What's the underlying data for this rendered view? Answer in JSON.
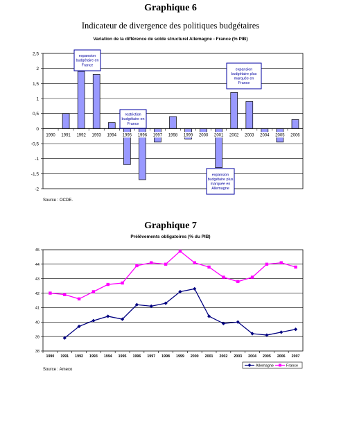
{
  "chart_data": [
    {
      "type": "bar",
      "heading": "Graphique 6",
      "title": "Indicateur de divergence des politiques budgétaires",
      "subtitle": "Variation de la différence de solde structurel Allemagne - France (% PIB)",
      "categories": [
        "1990",
        "1991",
        "1992",
        "1993",
        "1994",
        "1995",
        "1996",
        "1997",
        "1998",
        "1999",
        "2000",
        "2001",
        "2002",
        "2003",
        "2004",
        "2005",
        "2006"
      ],
      "values": [
        0,
        0.5,
        1.9,
        1.8,
        0.2,
        -1.2,
        -1.7,
        -0.45,
        0.4,
        -0.35,
        -0.2,
        -1.3,
        1.2,
        0.9,
        -0.2,
        -0.45,
        0.3
      ],
      "ylim": [
        -2,
        2.5
      ],
      "yticks": [
        "2,5",
        "2",
        "1,5",
        "1",
        "0,5",
        "0",
        "-0,5",
        "-1",
        "-1,5",
        "-2"
      ],
      "ytick_values": [
        2.5,
        2,
        1.5,
        1,
        0.5,
        0,
        -0.5,
        -1,
        -1.5,
        -2
      ],
      "bar_color": "#9999ff",
      "grid": true,
      "annotations": [
        {
          "text": [
            "expansion",
            "budgétaire en",
            "France"
          ],
          "category": "1992"
        },
        {
          "text": [
            "restriction",
            "budgétaire en",
            "France"
          ],
          "category": "1996"
        },
        {
          "text": [
            "expansion",
            "budgétaire plus",
            "marquée en",
            "Allemagne"
          ],
          "category": "2001"
        },
        {
          "text": [
            "expansion",
            "budgétaire plus",
            "marquée en",
            "France"
          ],
          "category": "2002"
        }
      ],
      "source": "Source : OCDE."
    },
    {
      "type": "line",
      "heading": "Graphique 7",
      "title": "Prélèvements obligatoires (% du PIB)",
      "x": [
        "1990",
        "1991",
        "1992",
        "1993",
        "1994",
        "1995",
        "1996",
        "1997",
        "1998",
        "1999",
        "2000",
        "2001",
        "2002",
        "2003",
        "2004",
        "2005",
        "2006",
        "2007"
      ],
      "ylim": [
        38,
        45
      ],
      "yticks": [
        "45",
        "44",
        "43",
        "42",
        "41",
        "40",
        "39",
        "38"
      ],
      "ytick_values": [
        45,
        44,
        43,
        42,
        41,
        40,
        39,
        38
      ],
      "grid": true,
      "legend_position": "bottom-right",
      "series": [
        {
          "name": "Allemagne",
          "color": "#000080",
          "marker": "diamond",
          "values": [
            null,
            38.9,
            39.7,
            40.1,
            40.4,
            40.2,
            41.2,
            41.1,
            41.3,
            42.1,
            42.3,
            40.4,
            39.9,
            40.0,
            39.2,
            39.1,
            39.3,
            39.5
          ]
        },
        {
          "name": "France",
          "color": "#ff00ff",
          "marker": "square",
          "values": [
            42.0,
            41.9,
            41.6,
            42.1,
            42.6,
            42.7,
            43.9,
            44.1,
            44.0,
            44.9,
            44.1,
            43.8,
            43.1,
            42.8,
            43.1,
            44.0,
            44.1,
            43.8
          ]
        }
      ],
      "source": "Source : Ameco"
    }
  ]
}
